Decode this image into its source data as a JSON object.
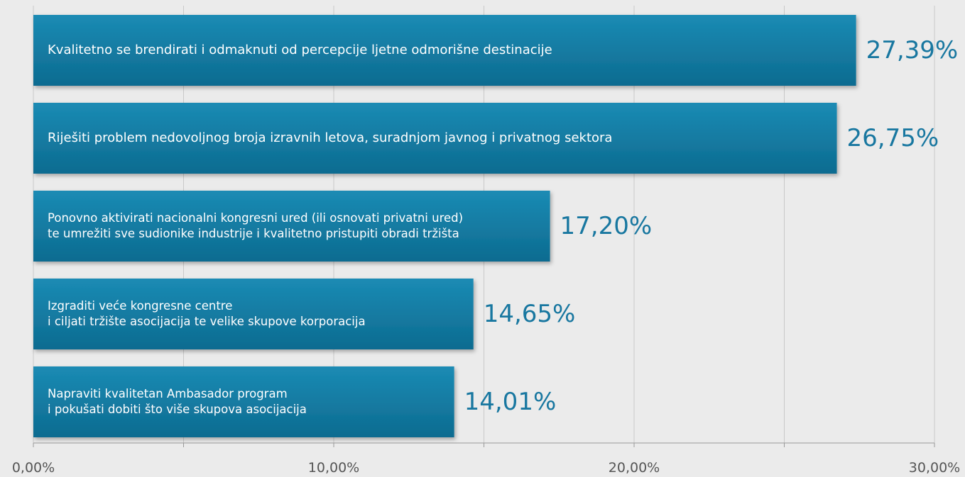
{
  "chart_data": {
    "type": "bar",
    "orientation": "horizontal",
    "categories": [
      "Kvalitetno se brendirati i odmaknuti od percepcije ljetne odmorišne destinacije",
      "Riješiti problem nedovoljnog broja izravnih letova, suradnjom javnog i privatnog sektora",
      "Ponovno aktivirati nacionalni kongresni ured (ili osnovati privatni ured)\nte umrežiti sve sudionike industrije i kvalitetno pristupiti obradi tržišta",
      "Izgraditi veće kongresne centre\ni ciljati tržište asocijacija te velike skupove korporacija",
      "Napraviti kvalitetan Ambasador program\ni pokušati dobiti što više skupova asocijacija"
    ],
    "values": [
      27.39,
      26.75,
      17.2,
      14.65,
      14.01
    ],
    "value_labels": [
      "27,39%",
      "26,75%",
      "17,20%",
      "14,65%",
      "14,01%"
    ],
    "color": "#137ea6",
    "xlim": [
      0,
      30
    ],
    "xticks": [
      {
        "value": 0,
        "label": "0,00%"
      },
      {
        "value": 5,
        "label": null
      },
      {
        "value": 10,
        "label": "10,00%"
      },
      {
        "value": 15,
        "label": null
      },
      {
        "value": 20,
        "label": "20,00%"
      },
      {
        "value": 25,
        "label": null
      },
      {
        "value": 30,
        "label": "30,00%"
      }
    ],
    "grid": true
  }
}
